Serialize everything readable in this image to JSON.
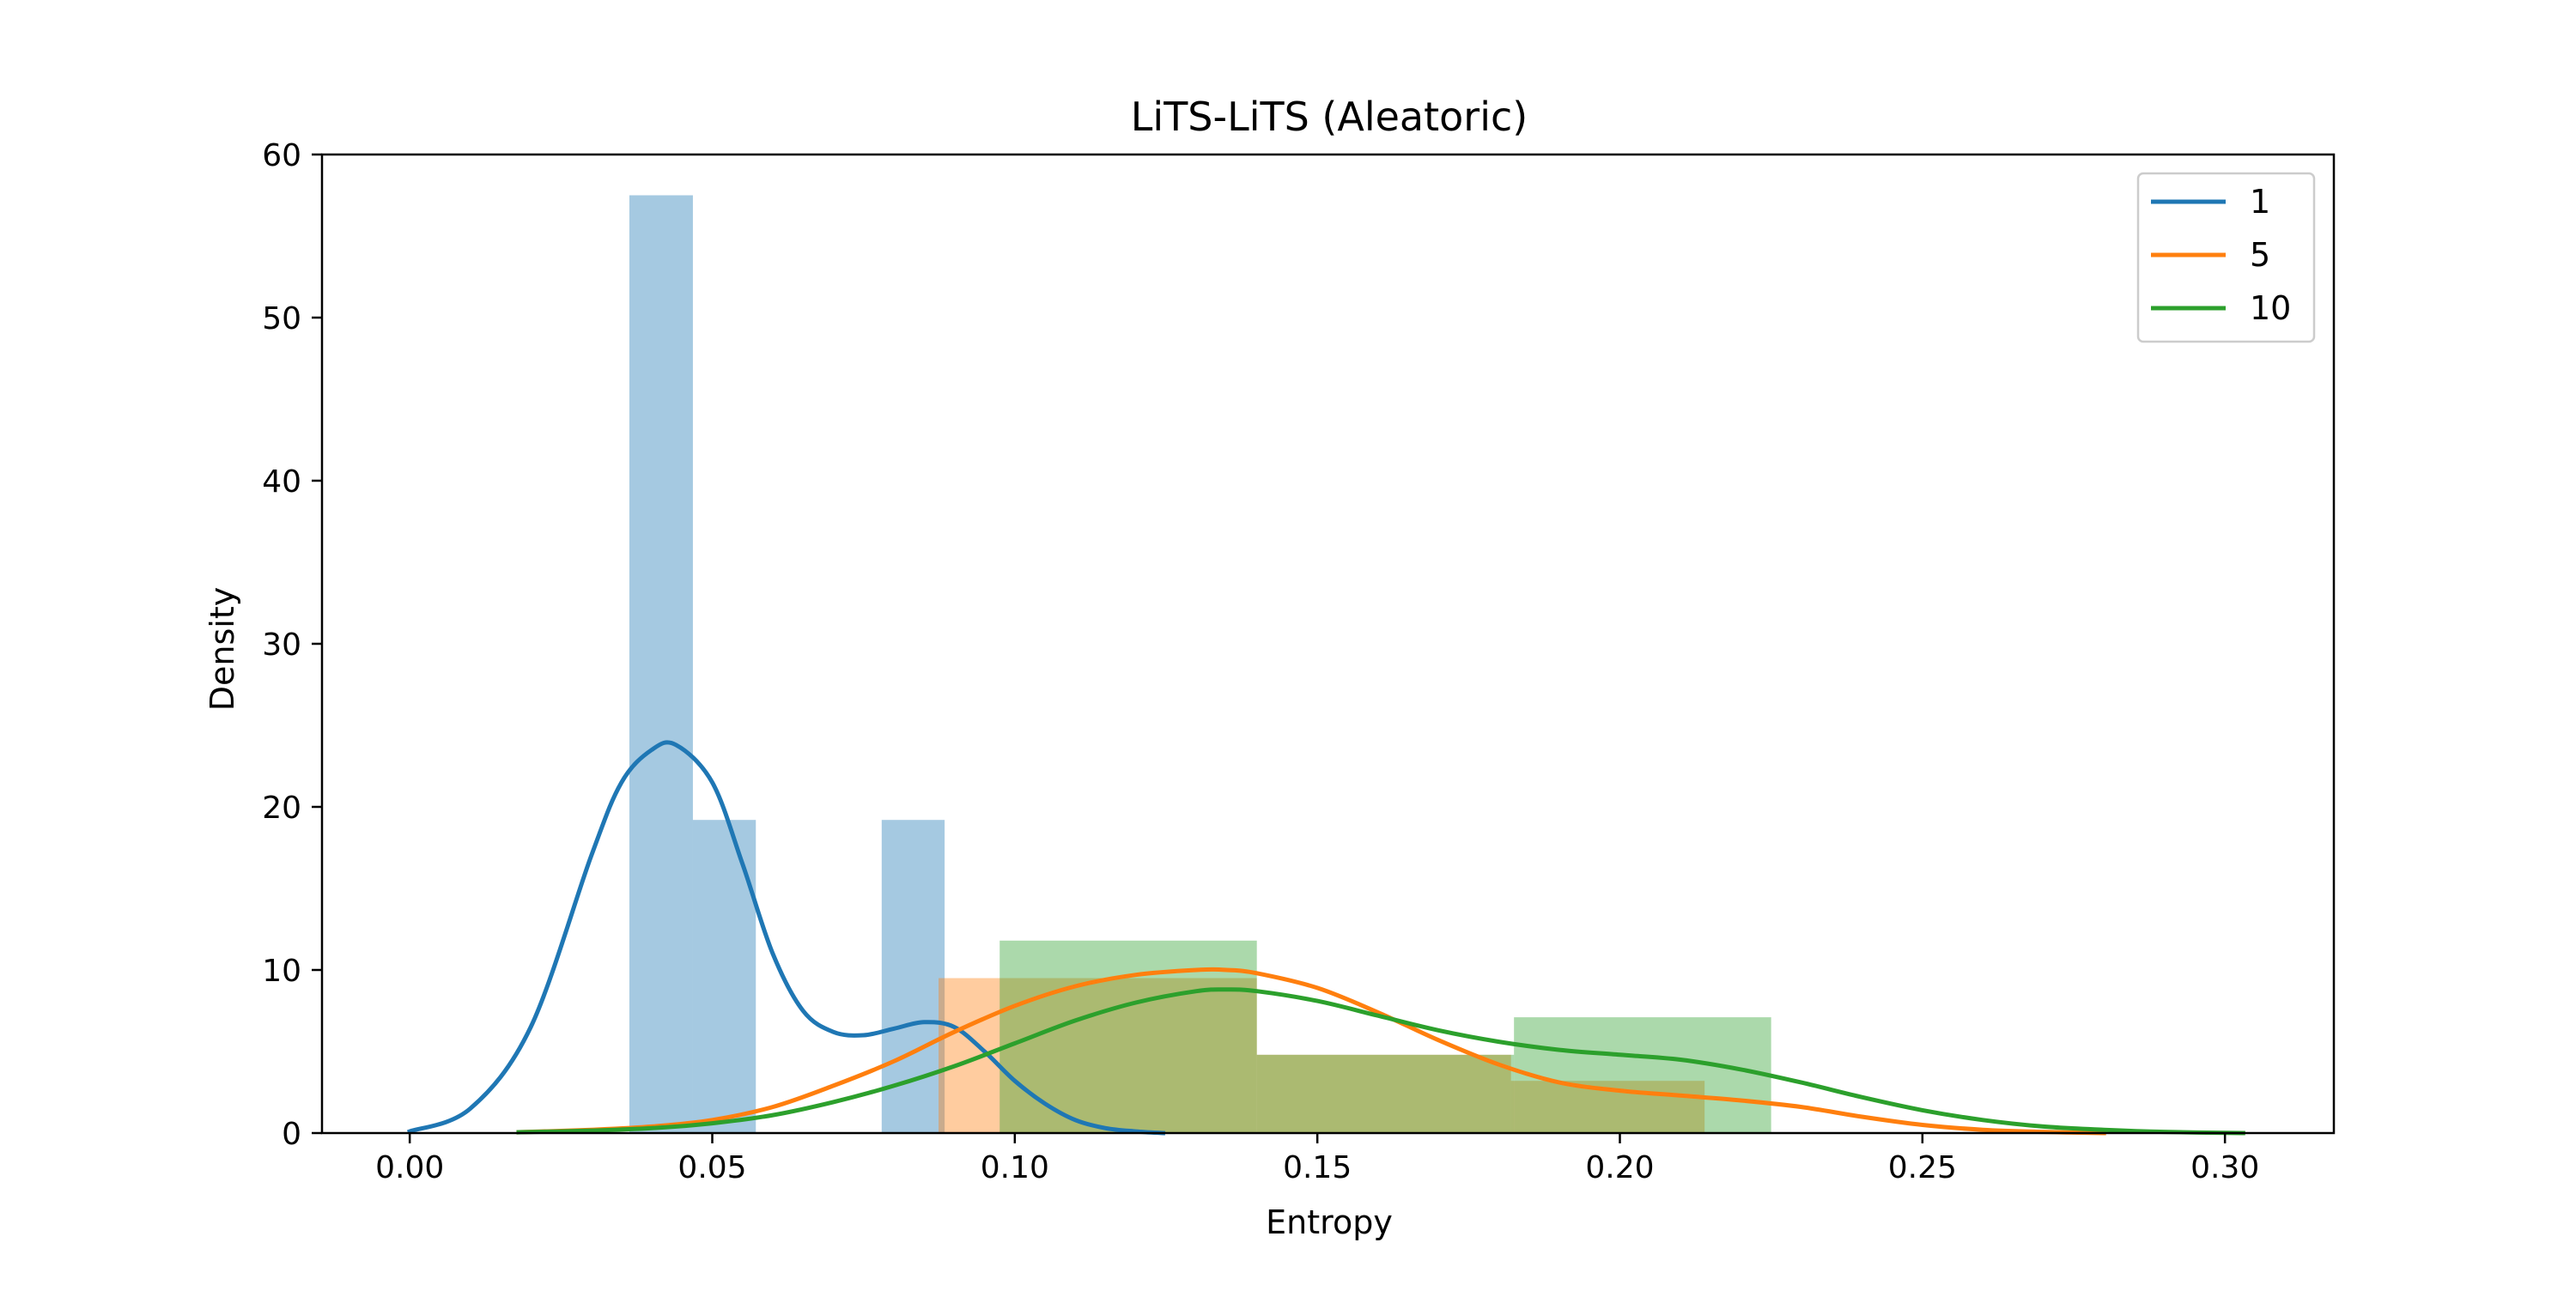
{
  "chart_data": {
    "type": "histogram",
    "title": "LiTS-LiTS (Aleatoric)",
    "xlabel": "Entropy",
    "ylabel": "Density",
    "xlim": [
      -0.0145,
      0.318
    ],
    "ylim": [
      0,
      60
    ],
    "xticks": [
      "0.00",
      "0.05",
      "0.10",
      "0.15",
      "0.20",
      "0.25",
      "0.30"
    ],
    "xtick_values": [
      0.0,
      0.05,
      0.1,
      0.15,
      0.2,
      0.25,
      0.3
    ],
    "yticks": [
      "0",
      "10",
      "20",
      "30",
      "40",
      "50",
      "60"
    ],
    "ytick_values": [
      0,
      10,
      20,
      30,
      40,
      50,
      60
    ],
    "grid": false,
    "legend_position": "top-right",
    "series": [
      {
        "name": "1",
        "color": "#1f77b4",
        "bars": [
          {
            "x0": 0.0363,
            "x1": 0.0468,
            "density": 57.5
          },
          {
            "x0": 0.0468,
            "x1": 0.0572,
            "density": 19.2
          },
          {
            "x0": 0.0572,
            "x1": 0.0676,
            "density": 0
          },
          {
            "x0": 0.0676,
            "x1": 0.078,
            "density": 0
          },
          {
            "x0": 0.078,
            "x1": 0.0884,
            "density": 19.2
          }
        ],
        "kde": {
          "x": [
            0.0,
            0.01,
            0.02,
            0.03,
            0.035,
            0.04,
            0.044,
            0.05,
            0.055,
            0.06,
            0.065,
            0.07,
            0.075,
            0.08,
            0.085,
            0.09,
            0.095,
            0.1,
            0.105,
            0.11,
            0.115,
            0.12,
            0.1245
          ],
          "y": [
            0.1,
            1.5,
            6.5,
            17.0,
            21.5,
            23.5,
            23.8,
            21.5,
            16.5,
            11.0,
            7.5,
            6.2,
            6.0,
            6.4,
            6.8,
            6.5,
            5.0,
            3.2,
            1.8,
            0.8,
            0.3,
            0.1,
            0.0
          ]
        }
      },
      {
        "name": "5",
        "color": "#ff7f0e",
        "bars": [
          {
            "x0": 0.0874,
            "x1": 0.14,
            "density": 9.5
          },
          {
            "x0": 0.14,
            "x1": 0.182,
            "density": 4.8
          },
          {
            "x0": 0.182,
            "x1": 0.214,
            "density": 3.2
          }
        ],
        "kde": {
          "x": [
            0.018,
            0.03,
            0.04,
            0.05,
            0.06,
            0.07,
            0.08,
            0.09,
            0.1,
            0.11,
            0.12,
            0.13,
            0.135,
            0.14,
            0.15,
            0.16,
            0.17,
            0.18,
            0.19,
            0.2,
            0.21,
            0.22,
            0.23,
            0.24,
            0.25,
            0.26,
            0.27,
            0.28
          ],
          "y": [
            0.05,
            0.2,
            0.4,
            0.8,
            1.6,
            2.9,
            4.4,
            6.2,
            7.8,
            9.0,
            9.7,
            10.0,
            10.0,
            9.8,
            8.9,
            7.4,
            5.7,
            4.2,
            3.1,
            2.6,
            2.3,
            2.0,
            1.6,
            1.0,
            0.5,
            0.2,
            0.07,
            0.0
          ]
        }
      },
      {
        "name": "10",
        "color": "#2ca02c",
        "bars": [
          {
            "x0": 0.0975,
            "x1": 0.14,
            "density": 11.8
          },
          {
            "x0": 0.14,
            "x1": 0.1825,
            "density": 4.8
          },
          {
            "x0": 0.1825,
            "x1": 0.225,
            "density": 7.1
          }
        ],
        "kde": {
          "x": [
            0.018,
            0.03,
            0.04,
            0.05,
            0.06,
            0.07,
            0.08,
            0.09,
            0.1,
            0.11,
            0.12,
            0.13,
            0.135,
            0.14,
            0.15,
            0.16,
            0.17,
            0.18,
            0.19,
            0.2,
            0.21,
            0.22,
            0.23,
            0.24,
            0.25,
            0.26,
            0.27,
            0.28,
            0.29,
            0.303
          ],
          "y": [
            0.05,
            0.15,
            0.3,
            0.6,
            1.1,
            1.9,
            2.9,
            4.1,
            5.5,
            6.9,
            8.0,
            8.7,
            8.8,
            8.7,
            8.1,
            7.2,
            6.3,
            5.6,
            5.1,
            4.8,
            4.5,
            3.9,
            3.1,
            2.2,
            1.4,
            0.8,
            0.4,
            0.2,
            0.07,
            0.0
          ]
        }
      }
    ]
  }
}
